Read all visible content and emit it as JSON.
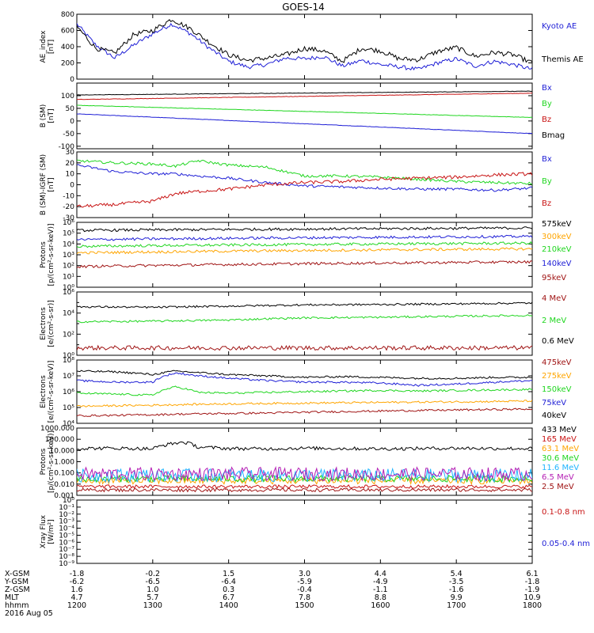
{
  "title": "GOES-14",
  "colors": {
    "blue": "#1f1fd6",
    "black": "#000000",
    "red": "#c81414",
    "green": "#1fd61f",
    "orange": "#ffa500",
    "cyan": "#1fb4ff",
    "darkred": "#a01414",
    "magenta": "#b41eb4"
  },
  "footer": {
    "rows": [
      {
        "label": "X-GSM",
        "values": [
          "-1.8",
          "-0.2",
          "1.5",
          "3.0",
          "4.4",
          "5.4",
          "6.1"
        ]
      },
      {
        "label": "Y-GSM",
        "values": [
          "-6.2",
          "-6.5",
          "-6.4",
          "-5.9",
          "-4.9",
          "-3.5",
          "-1.8"
        ]
      },
      {
        "label": "Z-GSM",
        "values": [
          "1.6",
          "1.0",
          "0.3",
          "-0.4",
          "-1.1",
          "-1.6",
          "-1.9"
        ]
      },
      {
        "label": "MLT",
        "values": [
          "4.7",
          "5.7",
          "6.7",
          "7.8",
          "8.8",
          "9.9",
          "10.9"
        ]
      },
      {
        "label": "hhmm",
        "values": [
          "1200",
          "1300",
          "1400",
          "1500",
          "1600",
          "1700",
          "1800"
        ]
      }
    ],
    "date": "2016 Aug 05"
  },
  "chart_data": [
    {
      "type": "line",
      "id": "ae",
      "ylabel": "AE_index\n[nT]",
      "ylim": [
        0,
        800
      ],
      "scale": "linear",
      "ticks": [
        "0",
        "200",
        "400",
        "600",
        "800"
      ],
      "tick_values": [
        0,
        200,
        400,
        600,
        800
      ],
      "x": [
        12.0,
        12.25,
        12.5,
        12.75,
        13.0,
        13.25,
        13.5,
        13.75,
        14.0,
        14.25,
        14.5,
        14.75,
        15.0,
        15.25,
        15.5,
        15.75,
        16.0,
        16.25,
        16.5,
        16.75,
        17.0,
        17.25,
        17.5,
        17.75,
        18.0
      ],
      "series": [
        {
          "name": "Kyoto AE",
          "color": "blue",
          "noise": 25,
          "values": [
            680,
            420,
            260,
            420,
            560,
            680,
            560,
            380,
            220,
            150,
            180,
            260,
            250,
            280,
            160,
            230,
            180,
            150,
            120,
            200,
            250,
            160,
            220,
            180,
            120
          ]
        },
        {
          "name": "Themis AE",
          "color": "black",
          "noise": 30,
          "values": [
            650,
            380,
            320,
            550,
            600,
            740,
            620,
            450,
            300,
            230,
            260,
            300,
            380,
            350,
            220,
            380,
            350,
            250,
            240,
            340,
            390,
            280,
            330,
            300,
            200
          ]
        }
      ]
    },
    {
      "type": "line",
      "id": "b",
      "ylabel": "B (SM)\n[nT]",
      "ylim": [
        -110,
        150
      ],
      "scale": "linear",
      "ticks": [
        "-100",
        "-50",
        "0",
        "50",
        "100"
      ],
      "tick_values": [
        -100,
        -50,
        0,
        50,
        100
      ],
      "x": [
        12,
        18
      ],
      "series": [
        {
          "name": "Bx",
          "color": "blue",
          "noise": 0.8,
          "values": [
            28,
            -50
          ]
        },
        {
          "name": "By",
          "color": "green",
          "noise": 0.8,
          "values": [
            62,
            14
          ]
        },
        {
          "name": "Bz",
          "color": "red",
          "noise": 0.8,
          "values": [
            85,
            110
          ]
        },
        {
          "name": "Bmag",
          "color": "black",
          "noise": 0.8,
          "values": [
            103,
            118
          ]
        }
      ]
    },
    {
      "type": "line",
      "id": "dbigrf",
      "ylabel": "B (SM)-IGRF (SM)\n[nT]",
      "ylim": [
        -30,
        30
      ],
      "scale": "linear",
      "ticks": [
        "-30",
        "-20",
        "-10",
        "0",
        "10",
        "20",
        "30"
      ],
      "tick_values": [
        -30,
        -20,
        -10,
        0,
        10,
        20,
        30
      ],
      "x": [
        12.0,
        12.5,
        13.0,
        13.3,
        13.6,
        14.0,
        14.5,
        15.0,
        15.5,
        16.0,
        16.5,
        17.0,
        17.5,
        18.0
      ],
      "series": [
        {
          "name": "Bx",
          "color": "blue",
          "noise": 1.2,
          "values": [
            18,
            12,
            10,
            10,
            8,
            6,
            2,
            -1,
            -2,
            -3,
            -4,
            -4,
            -5,
            -3
          ]
        },
        {
          "name": "By",
          "color": "green",
          "noise": 1.2,
          "values": [
            22,
            20,
            19,
            17,
            22,
            18,
            16,
            8,
            8,
            7,
            5,
            3,
            2,
            1
          ]
        },
        {
          "name": "Bz",
          "color": "red",
          "noise": 1.5,
          "values": [
            -20,
            -18,
            -15,
            -8,
            -6,
            -4,
            0,
            2,
            3,
            5,
            6,
            7,
            9,
            10
          ]
        }
      ]
    },
    {
      "type": "line",
      "id": "mageps",
      "ylabel": "Protons\n[p/(cm²-s-sr-keV)]",
      "ylim": [
        1,
        1000000
      ],
      "scale": "log",
      "ticks": [
        "10⁰",
        "10¹",
        "10²",
        "10³",
        "10⁴",
        "10⁵",
        "10⁶"
      ],
      "tick_values": [
        1,
        10,
        100,
        1000,
        10000,
        100000,
        1000000
      ],
      "x": [
        12,
        18
      ],
      "series": [
        {
          "name": "575keV",
          "color": "black",
          "noise": 0.04,
          "values": [
            180000,
            300000
          ]
        },
        {
          "name": "300keV",
          "color": "orange",
          "noise": 0.04,
          "values": [
            1500,
            3500
          ]
        },
        {
          "name": "210keV",
          "color": "green",
          "noise": 0.04,
          "values": [
            6000,
            12000
          ]
        },
        {
          "name": "140keV",
          "color": "blue",
          "noise": 0.04,
          "values": [
            25000,
            50000
          ]
        },
        {
          "name": "95keV",
          "color": "darkred",
          "noise": 0.04,
          "values": [
            80,
            220
          ]
        }
      ]
    },
    {
      "type": "line",
      "id": "maged_e",
      "ylabel": "Electrons\n[e/(cm²-s-sr)]",
      "ylim": [
        1,
        1000000
      ],
      "scale": "log",
      "ticks": [
        "10⁰",
        "10²",
        "10⁴",
        "10⁶"
      ],
      "tick_values": [
        1,
        100,
        10000,
        1000000
      ],
      "ticks_minor": [
        10,
        1000,
        100000
      ],
      "x": [
        12.0,
        13.0,
        14.0,
        15.0,
        16.0,
        17.0,
        18.0
      ],
      "series": [
        {
          "name": "4 MeV",
          "color": "darkred",
          "noise": 0.07,
          "values": [
            5,
            5,
            5,
            5,
            5,
            5,
            5
          ]
        },
        {
          "name": "2 MeV",
          "color": "green",
          "noise": 0.03,
          "values": [
            1500,
            1700,
            2200,
            3500,
            4000,
            5000,
            6000
          ]
        },
        {
          "name": "0.6 MeV",
          "color": "black",
          "noise": 0.03,
          "values": [
            40000,
            35000,
            45000,
            60000,
            65000,
            75000,
            90000
          ]
        }
      ]
    },
    {
      "type": "line",
      "id": "magpd",
      "ylabel": "Electrons\n[e/(cm²-s-sr-keV)]",
      "ylim": [
        10000,
        100000000
      ],
      "scale": "log",
      "ticks": [
        "10⁴",
        "10⁵",
        "10⁶",
        "10⁷",
        "10⁸"
      ],
      "tick_values": [
        10000,
        100000,
        1000000,
        10000000,
        100000000
      ],
      "x": [
        12.0,
        12.5,
        13.0,
        13.3,
        13.6,
        14.0,
        14.5,
        15.0,
        15.5,
        16.0,
        16.5,
        17.0,
        17.5,
        18.0
      ],
      "series": [
        {
          "name": "475keV",
          "color": "darkred",
          "noise": 0.02,
          "values": [
            30000,
            32000,
            35000,
            38000,
            40000,
            42000,
            45000,
            50000,
            55000,
            60000,
            65000,
            70000,
            75000,
            80000
          ]
        },
        {
          "name": "275keV",
          "color": "orange",
          "noise": 0.02,
          "values": [
            120000,
            130000,
            140000,
            150000,
            160000,
            170000,
            180000,
            190000,
            200000,
            210000,
            220000,
            230000,
            240000,
            260000
          ]
        },
        {
          "name": "150keV",
          "color": "green",
          "noise": 0.02,
          "values": [
            800000,
            700000,
            600000,
            2000000,
            900000,
            800000,
            900000,
            1000000,
            1100000,
            1200000,
            1100000,
            1200000,
            1300000,
            1400000
          ]
        },
        {
          "name": "75keV",
          "color": "blue",
          "noise": 0.02,
          "values": [
            5000000,
            4000000,
            4000000,
            15000000,
            10000000,
            7000000,
            5000000,
            4000000,
            4000000,
            3500000,
            2500000,
            3000000,
            4000000,
            5000000
          ]
        },
        {
          "name": "40keV",
          "color": "black",
          "noise": 0.02,
          "values": [
            20000000,
            18000000,
            12000000,
            20000000,
            16000000,
            12000000,
            10000000,
            8000000,
            9000000,
            8000000,
            7000000,
            7000000,
            8000000,
            8000000
          ]
        }
      ]
    },
    {
      "type": "line",
      "id": "epead",
      "ylabel": "Protons\n[p/(cm²-s-sr-keV)]",
      "ylim": [
        0.001,
        1000
      ],
      "scale": "log",
      "ticks": [
        "0.001",
        "0.010",
        "0.100",
        "1.000",
        "10.000",
        "100.000",
        "1000.000"
      ],
      "tick_values": [
        0.001,
        0.01,
        0.1,
        1,
        10,
        100,
        1000
      ],
      "x": [
        12.0,
        12.5,
        13.0,
        13.25,
        13.4,
        13.6,
        14.0,
        14.5,
        15.0,
        15.5,
        16.0,
        16.5,
        17.0,
        17.5,
        18.0
      ],
      "series": [
        {
          "name": "433 MeV",
          "color": "black",
          "noise": 0.05,
          "values": [
            15,
            16,
            14,
            40,
            55,
            20,
            15,
            14,
            16,
            15,
            14,
            15,
            16,
            15,
            15
          ]
        },
        {
          "name": "165 MeV",
          "color": "red",
          "noise": 0.05,
          "values": [
            0.006,
            0.006,
            0.006,
            0.006,
            0.006,
            0.006,
            0.006,
            0.006,
            0.006,
            0.006,
            0.006,
            0.006,
            0.006,
            0.006,
            0.006
          ]
        },
        {
          "name": "63.1 MeV",
          "color": "orange",
          "noise": 0.1,
          "values": [
            0.02,
            0.02,
            0.02,
            0.02,
            0.02,
            0.02,
            0.02,
            0.02,
            0.02,
            0.02,
            0.02,
            0.02,
            0.02,
            0.02,
            0.02
          ]
        },
        {
          "name": "30.6 MeV",
          "color": "green",
          "noise": 0.1,
          "values": [
            0.03,
            0.03,
            0.03,
            0.03,
            0.03,
            0.03,
            0.03,
            0.03,
            0.03,
            0.03,
            0.03,
            0.03,
            0.03,
            0.03,
            0.03
          ]
        },
        {
          "name": "11.6 MeV",
          "color": "cyan",
          "noise": 0.2,
          "values": [
            0.06,
            0.06,
            0.06,
            0.06,
            0.06,
            0.06,
            0.06,
            0.06,
            0.06,
            0.06,
            0.06,
            0.06,
            0.06,
            0.06,
            0.06
          ]
        },
        {
          "name": "6.5 MeV",
          "color": "magenta",
          "noise": 0.2,
          "values": [
            0.08,
            0.08,
            0.08,
            0.08,
            0.08,
            0.08,
            0.08,
            0.08,
            0.08,
            0.08,
            0.08,
            0.08,
            0.08,
            0.08,
            0.08
          ]
        },
        {
          "name": "2.5 MeV",
          "color": "darkred",
          "noise": 0.05,
          "values": [
            0.003,
            0.003,
            0.003,
            0.003,
            0.003,
            0.003,
            0.003,
            0.003,
            0.003,
            0.003,
            0.003,
            0.003,
            0.003,
            0.003,
            0.003
          ]
        }
      ]
    },
    {
      "type": "line",
      "id": "xray",
      "ylabel": "Xray Flux\n[W/m²]",
      "ylim": [
        1e-09,
        1
      ],
      "scale": "log",
      "ticks": [
        "10⁻⁹",
        "10⁻⁸",
        "10⁻⁷",
        "10⁻⁶",
        "10⁻⁵",
        "10⁻⁴",
        "10⁻³",
        "10⁻²",
        "10⁻¹",
        "10⁰"
      ],
      "tick_values": [
        1e-09,
        1e-08,
        1e-07,
        1e-06,
        1e-05,
        0.0001,
        0.001,
        0.01,
        0.1,
        1
      ],
      "x": [],
      "series": [
        {
          "name": "0.1-0.8 nm",
          "color": "red",
          "values": []
        },
        {
          "name": "0.05-0.4 nm",
          "color": "blue",
          "values": []
        }
      ]
    }
  ]
}
